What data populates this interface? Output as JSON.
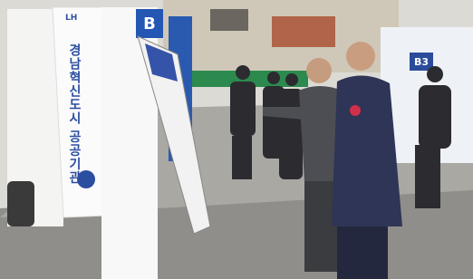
{
  "signs": {
    "banner_top": "LH",
    "banner_text": "경남혁신도시 공공기관",
    "hall_letter": "B",
    "booth_number": "B3"
  }
}
